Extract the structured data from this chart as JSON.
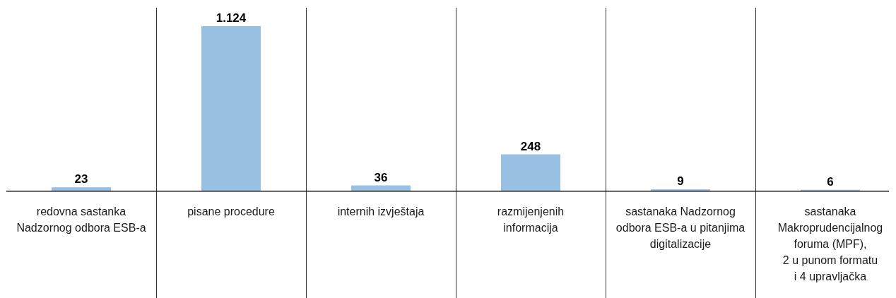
{
  "chart_data": {
    "type": "bar",
    "categories": [
      "redovna sastanka\nNadzornog odbora ESB-a",
      "pisane procedure",
      "internih izvještaja",
      "razmijenjenih\ninformacija",
      "sastanaka Nadzornog\nodbora ESB-a u pitanjima\ndigitalizacije",
      "sastanaka\nMakroprudencijalnog\nforuma (MPF),\n2 u punom formatu\ni 4 upravljačka"
    ],
    "values": [
      23,
      1124,
      36,
      248,
      9,
      6
    ],
    "value_labels": [
      "23",
      "1.124",
      "36",
      "248",
      "9",
      "6"
    ],
    "color": "#97c0e2",
    "grid": "x"
  }
}
